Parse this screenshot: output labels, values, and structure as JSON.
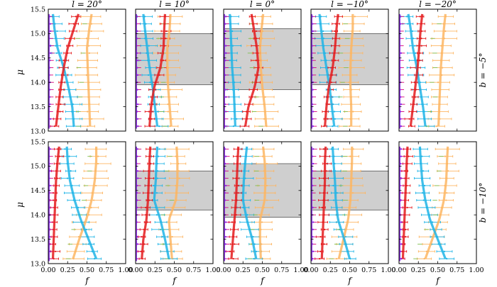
{
  "colors": {
    "red": "#e41a1c",
    "blue": "#1fb4e6",
    "orange": "#fdb663",
    "green": "#7fbf4f",
    "purple": "#8a2be2",
    "magenta": "#d6007a",
    "band": "#cfcfcf"
  },
  "chart_data": {
    "type": "line",
    "xlabel": "f",
    "ylabel": "μ",
    "xlim": [
      0,
      1
    ],
    "ylim": [
      13.0,
      15.5
    ],
    "xticks": [
      "0.00",
      "0.25",
      "0.50",
      "0.75",
      "1.00"
    ],
    "yticks": [
      "13.0",
      "13.5",
      "14.0",
      "14.5",
      "15.0",
      "15.5"
    ],
    "column_titles": [
      "l = 20°",
      "l = 10°",
      "l = 0°",
      "l = −10°",
      "l = −20°"
    ],
    "row_titles": [
      "b = −5°",
      "b = −10°"
    ],
    "panels": [
      {
        "row": 0,
        "col": 0,
        "band": null,
        "red": [
          0.1,
          0.13,
          0.16,
          0.2,
          0.25,
          0.33,
          0.39
        ],
        "blue": [
          0.33,
          0.31,
          0.26,
          0.2,
          0.12,
          0.08,
          0.06
        ],
        "orange": [
          0.54,
          0.53,
          0.52,
          0.51,
          0.5,
          0.53,
          0.56
        ]
      },
      {
        "row": 0,
        "col": 1,
        "band": [
          13.95,
          15.0
        ],
        "red": [
          0.18,
          0.2,
          0.24,
          0.32,
          0.36,
          0.37,
          0.38
        ],
        "blue": [
          0.28,
          0.25,
          0.22,
          0.18,
          0.15,
          0.12,
          0.1
        ],
        "orange": [
          0.46,
          0.44,
          0.42,
          0.41,
          0.41,
          0.44,
          0.45
        ]
      },
      {
        "row": 0,
        "col": 2,
        "band": [
          13.85,
          15.1
        ],
        "red": [
          0.28,
          0.32,
          0.4,
          0.45,
          0.43,
          0.39,
          0.36
        ],
        "blue": [
          0.15,
          0.14,
          0.13,
          0.11,
          0.1,
          0.09,
          0.08
        ],
        "orange": [
          0.55,
          0.53,
          0.5,
          0.48,
          0.47,
          0.49,
          0.51
        ]
      },
      {
        "row": 0,
        "col": 3,
        "band": [
          13.95,
          15.0
        ],
        "red": [
          0.18,
          0.2,
          0.23,
          0.28,
          0.31,
          0.33,
          0.35
        ],
        "blue": [
          0.3,
          0.27,
          0.24,
          0.2,
          0.16,
          0.13,
          0.11
        ],
        "orange": [
          0.52,
          0.52,
          0.51,
          0.51,
          0.52,
          0.54,
          0.54
        ]
      },
      {
        "row": 0,
        "col": 4,
        "band": null,
        "red": [
          0.15,
          0.18,
          0.21,
          0.24,
          0.26,
          0.28,
          0.3
        ],
        "blue": [
          0.34,
          0.31,
          0.27,
          0.23,
          0.18,
          0.15,
          0.12
        ],
        "orange": [
          0.51,
          0.52,
          0.53,
          0.54,
          0.56,
          0.58,
          0.6
        ]
      },
      {
        "row": 1,
        "col": 0,
        "band": null,
        "red": [
          0.06,
          0.07,
          0.08,
          0.09,
          0.1,
          0.12,
          0.14
        ],
        "blue": [
          0.62,
          0.52,
          0.42,
          0.34,
          0.28,
          0.25,
          0.24
        ],
        "orange": [
          0.32,
          0.4,
          0.49,
          0.56,
          0.6,
          0.62,
          0.62
        ]
      },
      {
        "row": 1,
        "col": 1,
        "band": [
          14.1,
          14.9
        ],
        "red": [
          0.08,
          0.1,
          0.14,
          0.16,
          0.17,
          0.18,
          0.19
        ],
        "blue": [
          0.43,
          0.38,
          0.32,
          0.24,
          0.26,
          0.27,
          0.28
        ],
        "orange": [
          0.47,
          0.45,
          0.43,
          0.52,
          0.54,
          0.54,
          0.53
        ]
      },
      {
        "row": 1,
        "col": 2,
        "band": [
          13.95,
          15.05
        ],
        "red": [
          0.1,
          0.12,
          0.14,
          0.16,
          0.17,
          0.18,
          0.19
        ],
        "blue": [
          0.42,
          0.37,
          0.3,
          0.25,
          0.26,
          0.28,
          0.3
        ],
        "orange": [
          0.48,
          0.47,
          0.47,
          0.53,
          0.54,
          0.53,
          0.51
        ]
      },
      {
        "row": 1,
        "col": 3,
        "band": [
          14.1,
          14.9
        ],
        "red": [
          0.14,
          0.15,
          0.16,
          0.17,
          0.18,
          0.18,
          0.19
        ],
        "blue": [
          0.5,
          0.43,
          0.35,
          0.32,
          0.31,
          0.29,
          0.28
        ],
        "orange": [
          0.36,
          0.42,
          0.48,
          0.51,
          0.52,
          0.53,
          0.53
        ]
      },
      {
        "row": 1,
        "col": 4,
        "band": null,
        "red": [
          0.05,
          0.06,
          0.07,
          0.08,
          0.09,
          0.1,
          0.11
        ],
        "blue": [
          0.6,
          0.5,
          0.4,
          0.34,
          0.3,
          0.28,
          0.27
        ],
        "orange": [
          0.34,
          0.43,
          0.52,
          0.58,
          0.61,
          0.62,
          0.63
        ]
      }
    ]
  }
}
